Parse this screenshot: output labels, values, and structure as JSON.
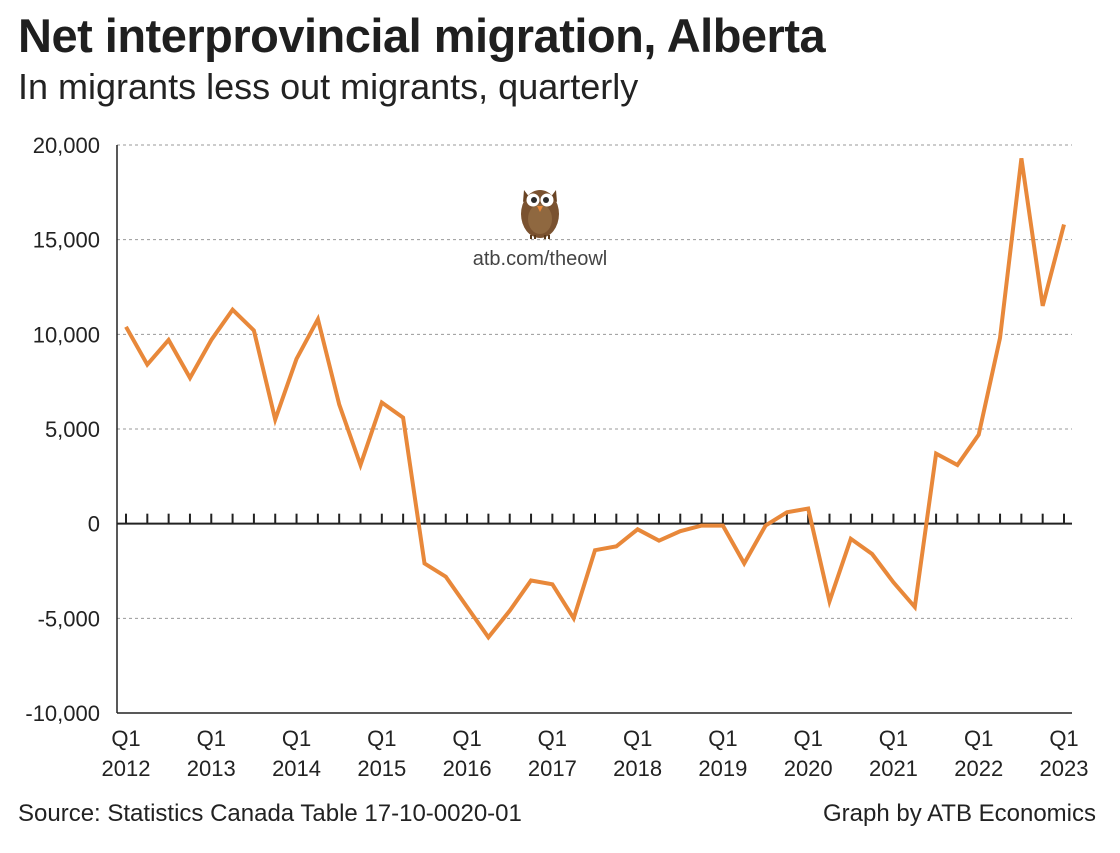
{
  "chart_data": {
    "type": "line",
    "title": "Net interprovincial migration, Alberta",
    "subtitle": "In migrants less out migrants, quarterly",
    "xlabel": "",
    "ylabel": "",
    "ylim": [
      -10000,
      20000
    ],
    "yticks": [
      20000,
      15000,
      10000,
      5000,
      0,
      -5000,
      -10000
    ],
    "ytick_labels": [
      "20,000",
      "15,000",
      "10,000",
      "5,000",
      "0",
      "-5,000",
      "-10,000"
    ],
    "xtick_labels": [
      {
        "q": "Q1",
        "year": "2012"
      },
      {
        "q": "Q1",
        "year": "2013"
      },
      {
        "q": "Q1",
        "year": "2014"
      },
      {
        "q": "Q1",
        "year": "2015"
      },
      {
        "q": "Q1",
        "year": "2016"
      },
      {
        "q": "Q1",
        "year": "2017"
      },
      {
        "q": "Q1",
        "year": "2018"
      },
      {
        "q": "Q1",
        "year": "2019"
      },
      {
        "q": "Q1",
        "year": "2020"
      },
      {
        "q": "Q1",
        "year": "2021"
      },
      {
        "q": "Q1",
        "year": "2022"
      },
      {
        "q": "Q1",
        "year": "2023"
      }
    ],
    "series": [
      {
        "name": "Net interprovincial migration",
        "color": "#E8883A",
        "start": "2012 Q1",
        "values": [
          10400,
          8400,
          9700,
          7700,
          9700,
          11300,
          10200,
          5500,
          8700,
          10800,
          6300,
          3100,
          6400,
          5600,
          -2100,
          -2800,
          -4400,
          -6000,
          -4600,
          -3000,
          -3200,
          -5000,
          -1400,
          -1200,
          -300,
          -900,
          -400,
          -100,
          -100,
          -2100,
          -100,
          600,
          800,
          -4100,
          -800,
          -1600,
          -3100,
          -4400,
          3700,
          3100,
          4700,
          9800,
          19300,
          11500,
          15800
        ]
      }
    ],
    "grid": true
  },
  "owl": {
    "url": "atb.com/theowl",
    "icon": "owl-logo"
  },
  "footer": {
    "source": "Source: Statistics Canada Table 17-10-0020-01",
    "credit": "Graph by ATB Economics"
  },
  "colors": {
    "line": "#E8883A",
    "grid": "#9a9a9a",
    "axis": "#222222"
  }
}
